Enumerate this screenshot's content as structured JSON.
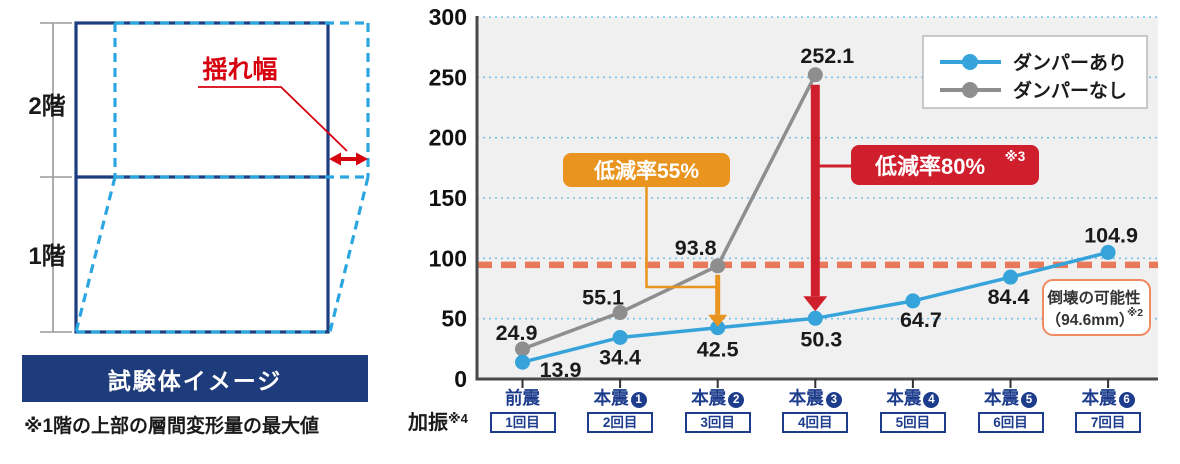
{
  "diagram": {
    "floor_labels": {
      "floor2": "2階",
      "floor1": "1階"
    },
    "sway_label": "揺れ幅",
    "caption": "試験体イメージ",
    "footnote": "※1階の上部の層間変形量の最大値",
    "colors": {
      "solid_frame": "#1C3E7E",
      "deformed_dashed": "#2BA6E0",
      "sway_red": "#D7000F",
      "banner_bg": "#1E3B7C"
    }
  },
  "chart_data": {
    "type": "line",
    "title": "",
    "xlabel": "加振",
    "xlabel_note": "※4",
    "ylabel": "",
    "ylim": [
      0,
      300
    ],
    "yticks": [
      0,
      50,
      100,
      150,
      200,
      250,
      300
    ],
    "grid": "dotted-horizontal-blue",
    "legend_position": "top-right",
    "categories": [
      {
        "label": "前震",
        "num": ""
      },
      {
        "label": "本震",
        "num": "1"
      },
      {
        "label": "本震",
        "num": "2"
      },
      {
        "label": "本震",
        "num": "3"
      },
      {
        "label": "本震",
        "num": "4"
      },
      {
        "label": "本震",
        "num": "5"
      },
      {
        "label": "本震",
        "num": "6"
      }
    ],
    "trial_labels": [
      "1回目",
      "2回目",
      "3回目",
      "4回目",
      "5回目",
      "6回目",
      "7回目"
    ],
    "series": [
      {
        "name": "ダンパーあり",
        "color": "#36A4DA",
        "values": [
          13.9,
          34.4,
          42.5,
          50.3,
          64.7,
          84.4,
          104.9
        ]
      },
      {
        "name": "ダンパーなし",
        "color": "#8E8E8E",
        "values": [
          24.9,
          55.1,
          93.8,
          252.1,
          null,
          null,
          null
        ]
      }
    ],
    "threshold_line": {
      "value": 94.6,
      "color": "#E8795B",
      "label": "倒壊の可能性",
      "label2": "（94.6mm）",
      "note": "※2"
    },
    "annotations": [
      {
        "label": "低減率55%",
        "note": "",
        "color": "#E8941F",
        "category_index": 2,
        "from_value": 93.8,
        "to_value": 42.5
      },
      {
        "label": "低減率80%",
        "note": "※3",
        "color": "#CF1F2C",
        "category_index": 3,
        "from_value": 252.1,
        "to_value": 50.3
      }
    ]
  }
}
